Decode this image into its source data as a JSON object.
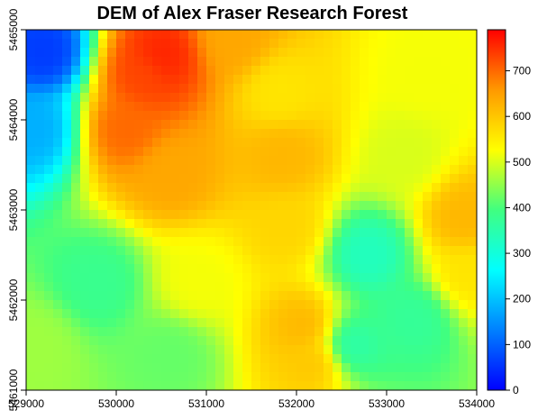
{
  "chart_data": {
    "type": "heatmap",
    "title": "DEM of Alex Fraser Research Forest",
    "xlabel": "",
    "ylabel": "",
    "xlim": [
      529000,
      534000
    ],
    "ylim": [
      5461000,
      5465000
    ],
    "x_ticks": [
      "529000",
      "530000",
      "531000",
      "532000",
      "533000",
      "534000"
    ],
    "y_ticks": [
      "5461000",
      "5462000",
      "5463000",
      "5464000",
      "5465000"
    ],
    "colorbar": {
      "range": [
        0,
        790
      ],
      "ticks": [
        "0",
        "100",
        "200",
        "300",
        "400",
        "500",
        "600",
        "700"
      ],
      "colors": [
        "#0000ff",
        "#0080ff",
        "#00ffff",
        "#40ff80",
        "#ffff00",
        "#ff9900",
        "#ff0000"
      ]
    },
    "features": [
      {
        "x": 529200,
        "y": 5464750,
        "value": 60
      },
      {
        "x": 529100,
        "y": 5463900,
        "value": 180
      },
      {
        "x": 530300,
        "y": 5464500,
        "value": 730
      },
      {
        "x": 530500,
        "y": 5464700,
        "value": 760
      },
      {
        "x": 530100,
        "y": 5463900,
        "value": 700
      },
      {
        "x": 530600,
        "y": 5463400,
        "value": 640
      },
      {
        "x": 531300,
        "y": 5464900,
        "value": 640
      },
      {
        "x": 531800,
        "y": 5464300,
        "value": 560
      },
      {
        "x": 531850,
        "y": 5463600,
        "value": 620
      },
      {
        "x": 531900,
        "y": 5462800,
        "value": 580
      },
      {
        "x": 532100,
        "y": 5461700,
        "value": 620
      },
      {
        "x": 532200,
        "y": 5461300,
        "value": 600
      },
      {
        "x": 530900,
        "y": 5462200,
        "value": 520
      },
      {
        "x": 533200,
        "y": 5463600,
        "value": 500
      },
      {
        "x": 533850,
        "y": 5462900,
        "value": 620
      },
      {
        "x": 533900,
        "y": 5462300,
        "value": 560
      },
      {
        "x": 529100,
        "y": 5461500,
        "value": 460
      },
      {
        "x": 533400,
        "y": 5464500,
        "value": 520
      },
      {
        "x": 532800,
        "y": 5462500,
        "value": 330
      },
      {
        "x": 532600,
        "y": 5461500,
        "value": 350
      },
      {
        "x": 533300,
        "y": 5461800,
        "value": 370
      },
      {
        "x": 529800,
        "y": 5462200,
        "value": 380
      },
      {
        "x": 530600,
        "y": 5461400,
        "value": 420
      }
    ]
  }
}
